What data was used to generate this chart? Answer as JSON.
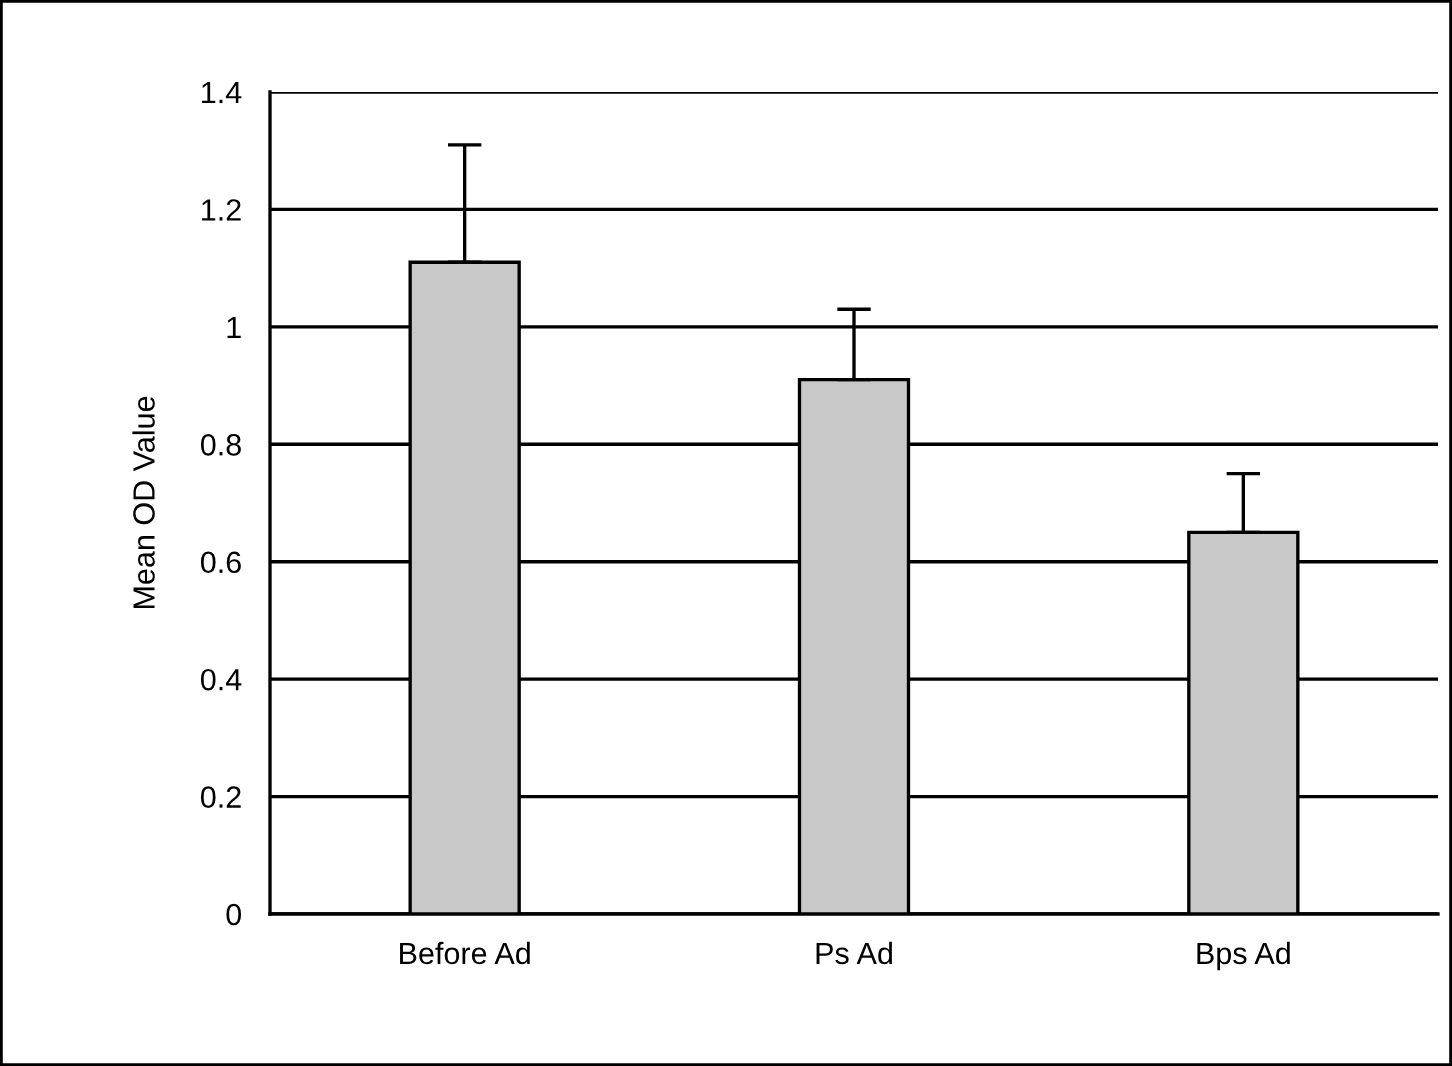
{
  "chart_data": {
    "type": "bar",
    "ylabel": "Mean OD Value",
    "categories": [
      "Before Ad",
      "Ps Ad",
      "Bps Ad"
    ],
    "values": [
      1.11,
      0.91,
      0.65
    ],
    "errors": [
      [
        1.11,
        1.31
      ],
      [
        0.91,
        1.03
      ],
      [
        0.65,
        0.75
      ]
    ],
    "color": "#c8c8c8",
    "ylim": [
      0,
      1.4
    ],
    "yticks": [
      0,
      0.2,
      0.4,
      0.6,
      0.8,
      1,
      1.2,
      1.4
    ],
    "grid": "y"
  }
}
